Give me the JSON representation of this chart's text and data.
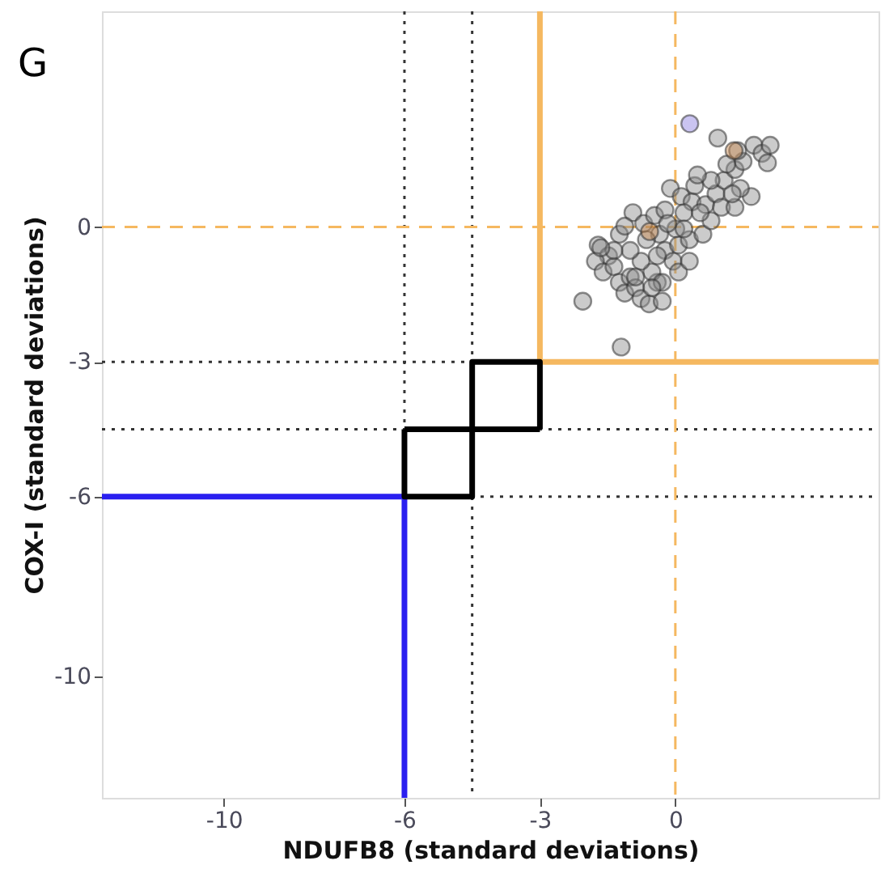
{
  "chart_data": {
    "type": "scatter",
    "xlabel": "NDUFB8 (standard deviations)",
    "ylabel": "COX-I (standard deviations)",
    "annotations": [
      "G"
    ],
    "xlim": [
      -12.7,
      4.5
    ],
    "ylim": [
      -12.7,
      4.8
    ],
    "xticks": [
      -10,
      -6,
      -3,
      0
    ],
    "yticks": [
      -10,
      -6,
      -3,
      0
    ],
    "grid": false,
    "marker": "circle",
    "ref_lines": [
      {
        "axis": "x",
        "value": -6,
        "label": null,
        "color": "#333333",
        "line_style": "dotted"
      },
      {
        "axis": "x",
        "value": -4.5,
        "label": null,
        "color": "#333333",
        "line_style": "dotted"
      },
      {
        "axis": "y",
        "value": -3,
        "label": null,
        "color": "#333333",
        "line_style": "dotted"
      },
      {
        "axis": "y",
        "value": -4.5,
        "label": null,
        "color": "#333333",
        "line_style": "dotted"
      },
      {
        "axis": "y",
        "value": -6,
        "label": null,
        "color": "#333333",
        "line_style": "dotted"
      },
      {
        "axis": "x",
        "value": 0,
        "label": null,
        "color": "#f5b860",
        "line_style": "dashed"
      },
      {
        "axis": "y",
        "value": 0,
        "label": null,
        "color": "#f5b860",
        "line_style": "dashed"
      }
    ],
    "series": [
      {
        "type": "line",
        "marker": "none",
        "color": "#f5b860",
        "x": [
          -3,
          -3,
          4.5
        ],
        "values": [
          4.8,
          -3,
          -3
        ]
      },
      {
        "type": "line",
        "marker": "none",
        "color": "#2a1ff0",
        "x": [
          -12.7,
          -6,
          -6
        ],
        "values": [
          -6,
          -6,
          -12.7
        ]
      },
      {
        "type": "line",
        "marker": "none",
        "color": "#000000",
        "x": [
          -6,
          -6,
          -4.5,
          -4.5,
          -3,
          -3
        ],
        "values": [
          -4.5,
          -6,
          -6,
          -3,
          -3,
          -4.5
        ]
      },
      {
        "type": "line",
        "marker": "none",
        "color": "#000000",
        "x": [
          -6,
          -3
        ],
        "values": [
          -4.5,
          -4.5
        ]
      },
      {
        "color": "#8c8c8c",
        "x": [
          -1.71,
          -1.48,
          -1.77,
          -1.6,
          -1.36,
          -1.24,
          -1.0,
          -1.12,
          -0.88,
          -0.76,
          -0.58,
          -0.29,
          -0.4,
          -0.52,
          -0.76,
          -1.0,
          -1.24,
          -0.94,
          -1.12,
          -0.7,
          -0.46,
          -0.23,
          -0.11,
          0.13,
          0.43,
          0.37,
          0.19,
          0.01,
          -0.35,
          -0.23,
          0.07,
          0.31,
          0.61,
          0.79,
          0.67,
          0.9,
          1.08,
          1.32,
          1.5,
          1.14,
          1.38,
          1.74,
          1.92,
          1.02,
          1.32,
          1.68,
          0.79,
          0.55,
          -0.05,
          -0.29,
          0.07,
          0.31,
          -0.64,
          -1.36,
          -1.65,
          0.94,
          2.1,
          2.04,
          -0.4,
          -0.88,
          -0.52,
          0.19,
          -0.17,
          0.49,
          1.44,
          1.26,
          -2.05,
          -1.2
        ],
        "values": [
          -0.4,
          -0.64,
          -0.76,
          -1.0,
          -0.88,
          -1.23,
          -1.11,
          -1.47,
          -1.35,
          -1.59,
          -1.71,
          -1.65,
          -1.23,
          -1.0,
          -0.76,
          -0.52,
          -0.16,
          0.32,
          0.02,
          0.08,
          0.26,
          0.38,
          0.86,
          0.68,
          0.92,
          0.56,
          0.32,
          -0.04,
          -0.16,
          -0.52,
          -0.4,
          -0.28,
          -0.16,
          0.14,
          0.5,
          0.74,
          1.04,
          1.28,
          1.46,
          1.4,
          1.7,
          1.82,
          1.64,
          0.44,
          0.44,
          0.68,
          1.04,
          0.32,
          -0.76,
          -1.23,
          -1.0,
          -0.76,
          -0.28,
          -0.52,
          -0.46,
          1.98,
          1.82,
          1.43,
          -0.64,
          -1.11,
          -1.35,
          -0.04,
          0.08,
          1.16,
          0.86,
          0.74,
          -1.65,
          -2.67
        ]
      },
      {
        "color": "#c8864a",
        "x": [
          1.3,
          -0.57
        ],
        "values": [
          1.7,
          -0.1
        ]
      },
      {
        "color": "#8a7de0",
        "x": [
          0.32
        ],
        "values": [
          2.3
        ]
      }
    ]
  }
}
